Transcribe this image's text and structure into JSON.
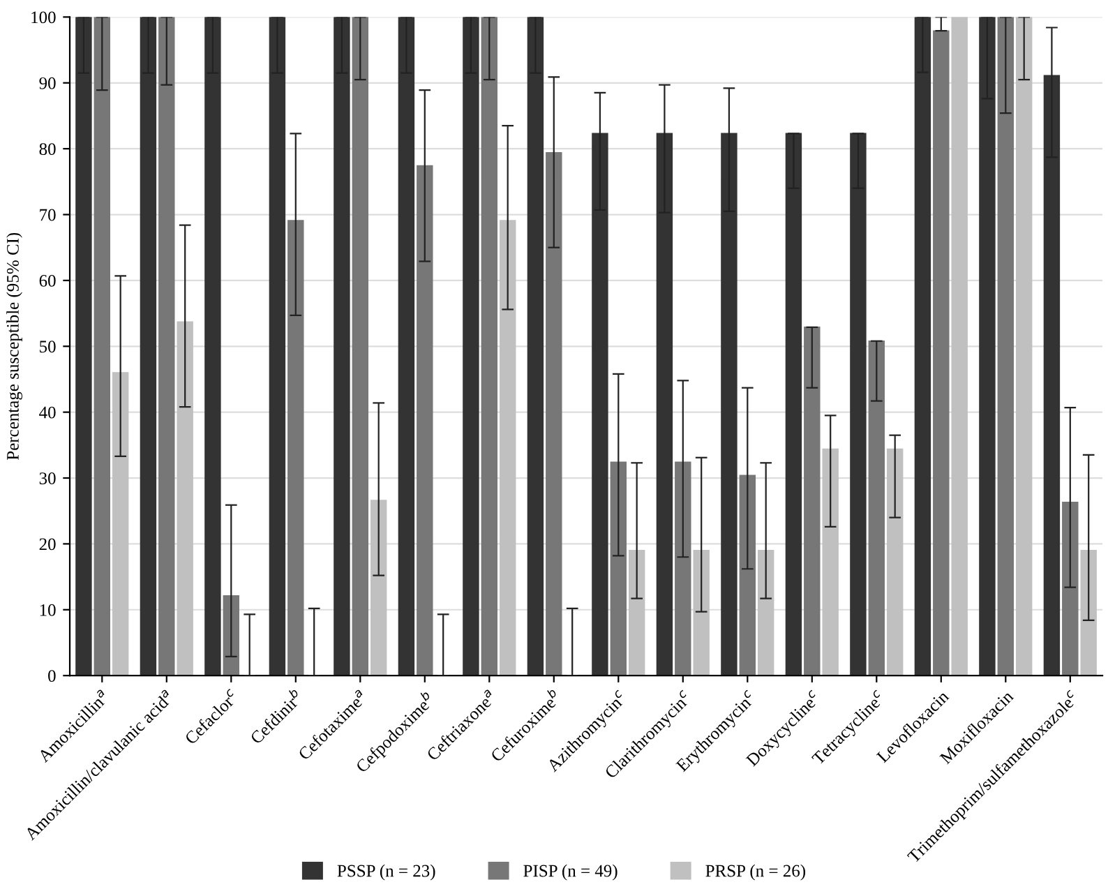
{
  "chart_data": {
    "type": "bar",
    "ylabel": "Percentage susceptible (95% CI)",
    "categories": [
      "Amoxicillin$^{a}$",
      "Amoxicillin/clavulanic acid$^{a}$",
      "Cefaclor$^{c}$",
      "Cefdinir$^{b}$",
      "Cefotaxime$^{a}$",
      "Cefpodoxime$^{b}$",
      "Ceftriaxone$^{a}$",
      "Cefuroxime$^{b}$",
      "Azithromycin$^{c}$",
      "Clarithromycin$^{c}$",
      "Erythromycin$^{c}$",
      "Doxycycline$^{c}$",
      "Tetracycline$^{c}$",
      "Levofloxacin",
      "Moxifloxacin",
      "Trimethoprim/sulfamethoxazole$^{c}$"
    ],
    "series": [
      {
        "name": "PSSP (n = 23)",
        "color": "#333333",
        "values": [
          100,
          100,
          100,
          100,
          100,
          100,
          100,
          100,
          82.3,
          82.3,
          82.3,
          82.3,
          82.3,
          100,
          100,
          91.1
        ],
        "errors": [
          [
            91.5,
            100
          ],
          [
            91.5,
            100
          ],
          [
            91.5,
            100
          ],
          [
            91.5,
            100
          ],
          [
            91.5,
            100
          ],
          [
            91.5,
            100
          ],
          [
            91.5,
            100
          ],
          [
            91.5,
            100
          ],
          [
            70.7,
            88.5
          ],
          [
            70.3,
            89.7
          ],
          [
            70.5,
            89.2
          ],
          [
            74.0,
            82.3
          ],
          [
            74.0,
            82.3
          ],
          [
            91.6,
            100
          ],
          [
            87.6,
            100
          ],
          [
            78.7,
            98.4
          ]
        ]
      },
      {
        "name": "PISP (n = 49)",
        "color": "#777777",
        "values": [
          100,
          100,
          12.1,
          69.1,
          100,
          77.4,
          100,
          79.4,
          32.4,
          32.4,
          30.4,
          52.9,
          50.8,
          97.9,
          100,
          26.3
        ],
        "errors": [
          [
            88.9,
            100
          ],
          [
            89.7,
            100
          ],
          [
            2.9,
            25.9
          ],
          [
            54.7,
            82.3
          ],
          [
            90.5,
            100
          ],
          [
            62.9,
            88.9
          ],
          [
            90.5,
            100
          ],
          [
            65.0,
            90.9
          ],
          [
            18.2,
            45.8
          ],
          [
            18.0,
            44.8
          ],
          [
            16.2,
            43.7
          ],
          [
            43.7,
            52.9
          ],
          [
            41.7,
            50.8
          ],
          [
            97.9,
            100
          ],
          [
            85.4,
            100
          ],
          [
            13.4,
            40.7
          ]
        ]
      },
      {
        "name": "PRSP (n = 26)",
        "color": "#c0c0c0",
        "values": [
          46.0,
          53.7,
          0,
          0,
          26.6,
          0,
          69.1,
          0,
          19.0,
          19.0,
          19.0,
          34.4,
          34.4,
          100,
          100,
          19.0
        ],
        "errors": [
          [
            33.3,
            60.7
          ],
          [
            40.8,
            68.4
          ],
          [
            0,
            9.3
          ],
          [
            0,
            10.2
          ],
          [
            15.2,
            41.4
          ],
          [
            0,
            9.3
          ],
          [
            55.6,
            83.5
          ],
          [
            0,
            10.2
          ],
          [
            11.7,
            32.3
          ],
          [
            9.7,
            33.1
          ],
          [
            11.7,
            32.3
          ],
          [
            22.6,
            39.5
          ],
          [
            24.0,
            36.5
          ],
          null,
          [
            90.5,
            100
          ],
          [
            8.4,
            33.5
          ]
        ]
      }
    ],
    "ylim": [
      0,
      100
    ],
    "yticks": [
      0,
      10,
      20,
      30,
      40,
      50,
      60,
      70,
      80,
      90,
      100
    ],
    "grid": "y",
    "legend": "bottom"
  }
}
